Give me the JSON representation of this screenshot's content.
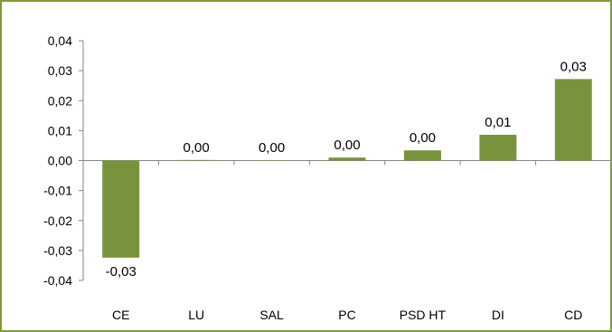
{
  "chart_data": {
    "type": "bar",
    "categories": [
      "CE",
      "LU",
      "SAL",
      "PC",
      "PSD HT",
      "DI",
      "CD"
    ],
    "values": [
      -0.0324,
      0.0002,
      0.0001,
      0.001,
      0.0034,
      0.0086,
      0.0272
    ],
    "data_labels": [
      "-0,03",
      "0,00",
      "0,00",
      "0,00",
      "0,00",
      "0,01",
      "0,03"
    ],
    "yticks": [
      0.04,
      0.03,
      0.02,
      0.01,
      0.0,
      -0.01,
      -0.02,
      -0.03,
      -0.04
    ],
    "ytick_labels": [
      "0,04",
      "0,03",
      "0,02",
      "0,01",
      "0,00",
      "-0,01",
      "-0,02",
      "-0,03",
      "-0,04"
    ],
    "ylim": [
      -0.04,
      0.04
    ],
    "title": "",
    "xlabel": "",
    "ylabel": "",
    "grid": false,
    "legend": "none",
    "bar_color": "#77933c",
    "frame_color": "#7f9a3a"
  }
}
